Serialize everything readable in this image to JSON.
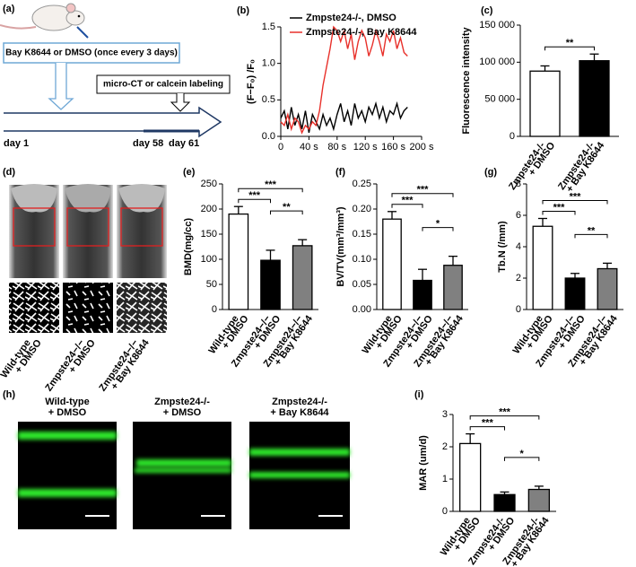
{
  "panel_a": {
    "label": "(a)",
    "treatment": "Bay K8644 or DMSO (once every 3 days)",
    "measurement": "micro-CT or calcein labeling",
    "timeline": [
      "day 1",
      "day 58",
      "day 61"
    ]
  },
  "panel_d": {
    "label": "(d)",
    "groups": [
      [
        "Wild-type",
        "+ DMSO"
      ],
      [
        "Zmpste24−/−",
        "+ DMSO"
      ],
      [
        "Zmpste24−/−",
        "+ Bay K8644"
      ]
    ]
  },
  "panel_h": {
    "label": "(h)",
    "groups": [
      [
        "Wild-type",
        "+ DMSO"
      ],
      [
        "Zmpste24-/-",
        "+ DMSO"
      ],
      [
        "Zmpste24-/-",
        "+ Bay K8644"
      ]
    ]
  },
  "chart_data": [
    {
      "type": "line",
      "panel": "(b)",
      "y_label": "(F−F₀) /F₀",
      "legend": "upper left",
      "x": [
        0,
        5,
        10,
        15,
        20,
        25,
        30,
        35,
        40,
        45,
        50,
        55,
        60,
        65,
        70,
        75,
        80,
        85,
        90,
        95,
        100,
        105,
        110,
        115,
        120,
        125,
        130,
        135,
        140,
        145,
        150,
        155,
        160,
        165,
        170,
        175,
        180
      ],
      "series": [
        {
          "name": "Zmpste24-/-, DMSO",
          "color": "#000000",
          "values": [
            0.25,
            0.35,
            0.1,
            0.4,
            0.15,
            0.3,
            0.1,
            0.35,
            0.05,
            0.3,
            0.2,
            0.1,
            0.3,
            0.15,
            0.25,
            0.1,
            0.3,
            0.45,
            0.2,
            0.35,
            0.15,
            0.45,
            0.25,
            0.35,
            0.2,
            0.4,
            0.3,
            0.45,
            0.25,
            0.4,
            0.2,
            0.35,
            0.3,
            0.45,
            0.25,
            0.35,
            0.4
          ]
        },
        {
          "name": "Zmpste24-/-, Bay K8644",
          "color": "#e8302a",
          "values": [
            0.2,
            0.15,
            0.3,
            0.1,
            0.25,
            0.2,
            0.05,
            0.15,
            0.1,
            0.2,
            0.15,
            0.35,
            0.7,
            0.95,
            1.2,
            1.5,
            1.45,
            1.3,
            1.45,
            1.2,
            1.4,
            1.05,
            1.3,
            1.45,
            1.35,
            1.1,
            1.25,
            1.45,
            1.3,
            1.1,
            1.4,
            1.3,
            1.45,
            1.2,
            1.35,
            1.15,
            1.1
          ]
        }
      ],
      "xlim": [
        0,
        200
      ],
      "xticks": [
        0,
        {
          "value": 40,
          "label": "40 s"
        },
        {
          "value": 80,
          "label": "80 s"
        },
        {
          "value": 120,
          "label": "120 s"
        },
        {
          "value": 160,
          "label": "160 s"
        },
        {
          "value": 200,
          "label": "200 s"
        }
      ],
      "ylim": [
        0,
        1.5
      ],
      "yticks": [
        {
          "value": 0,
          "label": "0.0"
        },
        0.5,
        {
          "value": 1,
          "label": "1.0"
        },
        1.5
      ]
    },
    {
      "type": "bar",
      "panel": "(c)",
      "y_label": "Fluorescence intensity",
      "categories": [
        [
          "Zmpste24-/-",
          "+ DMSO"
        ],
        [
          "Zmpste24-/-",
          "+ Bay K8644"
        ]
      ],
      "values": [
        88000,
        102000
      ],
      "errors": [
        7000,
        9000
      ],
      "colors": [
        "#ffffff",
        "#000000"
      ],
      "ylim": [
        0,
        150000
      ],
      "yticks": [
        0,
        {
          "value": 50000,
          "label": "50 000"
        },
        {
          "value": 100000,
          "label": "100 000"
        },
        {
          "value": 150000,
          "label": "150 000"
        }
      ],
      "significance": [
        {
          "from": 0,
          "to": 1,
          "label": "**"
        }
      ]
    },
    {
      "type": "bar",
      "panel": "(e)",
      "y_label": "BMD(mg/cc)",
      "categories": [
        [
          "Wild-type",
          "+ DMSO"
        ],
        [
          "Zmpste24−/−",
          "+ DMSO"
        ],
        [
          "Zmpste24−/−",
          "+ Bay K8644"
        ]
      ],
      "values": [
        190,
        98,
        127
      ],
      "errors": [
        15,
        20,
        12
      ],
      "colors": [
        "#ffffff",
        "#000000",
        "#808080"
      ],
      "ylim": [
        0,
        250
      ],
      "yticks": [
        0,
        50,
        100,
        150,
        200,
        250
      ],
      "significance": [
        {
          "from": 0,
          "to": 1,
          "label": "***"
        },
        {
          "from": 0,
          "to": 2,
          "label": "***"
        },
        {
          "from": 1,
          "to": 2,
          "label": "**"
        }
      ]
    },
    {
      "type": "bar",
      "panel": "(f)",
      "y_label": "BV/TV(mm³/mm³)",
      "categories": [
        [
          "Wild-type",
          "+ DMSO"
        ],
        [
          "Zmpste24−/−",
          "+ DMSO"
        ],
        [
          "Zmpste24−/−",
          "+ Bay K8644"
        ]
      ],
      "values": [
        0.18,
        0.058,
        0.088
      ],
      "errors": [
        0.015,
        0.022,
        0.018
      ],
      "colors": [
        "#ffffff",
        "#000000",
        "#808080"
      ],
      "ylim": [
        0,
        0.25
      ],
      "yticks": [
        {
          "value": 0,
          "label": "0.00"
        },
        0.05,
        {
          "value": 0.1,
          "label": "0.10"
        },
        0.15,
        {
          "value": 0.2,
          "label": "0.20"
        },
        0.25
      ],
      "significance": [
        {
          "from": 0,
          "to": 1,
          "label": "***"
        },
        {
          "from": 0,
          "to": 2,
          "label": "***"
        },
        {
          "from": 1,
          "to": 2,
          "label": "*"
        }
      ]
    },
    {
      "type": "bar",
      "panel": "(g)",
      "y_label": "Tb.N (/mm)",
      "categories": [
        [
          "Wild-type",
          "+ DMSO"
        ],
        [
          "Zmpste24−/−",
          "+ DMSO"
        ],
        [
          "Zmpste24−/−",
          "+ Bay K8644"
        ]
      ],
      "values": [
        5.3,
        2.0,
        2.6
      ],
      "errors": [
        0.5,
        0.3,
        0.35
      ],
      "colors": [
        "#ffffff",
        "#000000",
        "#808080"
      ],
      "ylim": [
        0,
        8
      ],
      "yticks": [
        0,
        2,
        4,
        6,
        8
      ],
      "significance": [
        {
          "from": 0,
          "to": 1,
          "label": "***"
        },
        {
          "from": 0,
          "to": 2,
          "label": "***"
        },
        {
          "from": 1,
          "to": 2,
          "label": "**"
        }
      ]
    },
    {
      "type": "bar",
      "panel": "(i)",
      "y_label": "MAR (um/d)",
      "categories": [
        [
          "Wild-type",
          "+ DMSO"
        ],
        [
          "Zmpste24-/-",
          "+ DMSO"
        ],
        [
          "Zmpste24-/-",
          "+ Bay K8644"
        ]
      ],
      "values": [
        2.1,
        0.52,
        0.68
      ],
      "errors": [
        0.3,
        0.08,
        0.1
      ],
      "colors": [
        "#ffffff",
        "#000000",
        "#808080"
      ],
      "ylim": [
        0,
        3
      ],
      "yticks": [
        0,
        1,
        2,
        3
      ],
      "significance": [
        {
          "from": 0,
          "to": 1,
          "label": "***"
        },
        {
          "from": 0,
          "to": 2,
          "label": "***"
        },
        {
          "from": 1,
          "to": 2,
          "label": "*"
        }
      ]
    }
  ]
}
